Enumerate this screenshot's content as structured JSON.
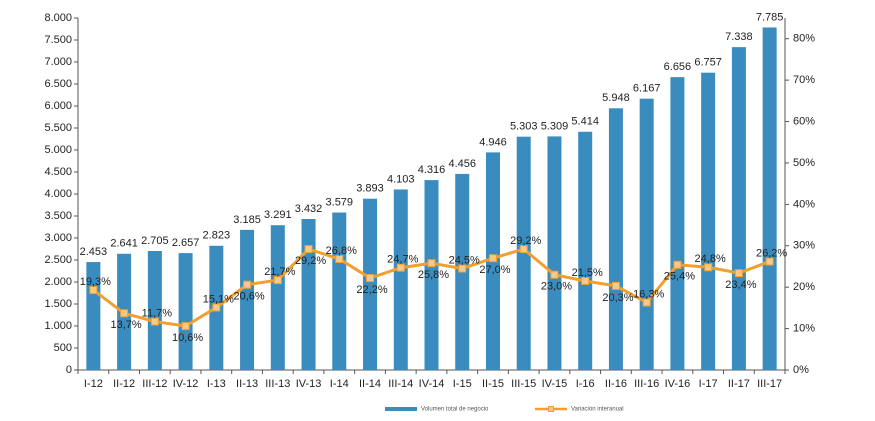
{
  "chart_data": {
    "type": "bar",
    "categories": [
      "I-12",
      "II-12",
      "III-12",
      "IV-12",
      "I-13",
      "II-13",
      "III-13",
      "IV-13",
      "I-14",
      "II-14",
      "III-14",
      "IV-14",
      "I-15",
      "II-15",
      "III-15",
      "IV-15",
      "I-16",
      "II-16",
      "III-16",
      "IV-16",
      "I-17",
      "II-17",
      "III-17"
    ],
    "series": [
      {
        "name": "Volumen total de negocio",
        "type": "bar",
        "color": "#3a8cbf",
        "values": [
          2453,
          2641,
          2705,
          2657,
          2823,
          3185,
          3291,
          3432,
          3579,
          3893,
          4103,
          4316,
          4456,
          4946,
          5303,
          5309,
          5414,
          5948,
          6167,
          6656,
          6757,
          7338,
          7785
        ],
        "value_labels": [
          "2.453",
          "2.641",
          "2.705",
          "2.657",
          "2.823",
          "3.185",
          "3.291",
          "3.432",
          "3.579",
          "3.893",
          "4.103",
          "4.316",
          "4.456",
          "4.946",
          "5.303",
          "5.309",
          "5.414",
          "5.948",
          "6.167",
          "6.656",
          "6.757",
          "7.338",
          "7.785"
        ]
      },
      {
        "name": "Variación interanual",
        "type": "line",
        "color": "#f0a030",
        "axis": "y2",
        "values": [
          19.3,
          13.7,
          11.7,
          10.6,
          15.1,
          20.6,
          21.7,
          29.2,
          26.8,
          22.2,
          24.7,
          25.8,
          24.5,
          27.0,
          29.2,
          23.0,
          21.5,
          20.3,
          16.3,
          25.4,
          24.8,
          23.4,
          26.2
        ],
        "value_labels": [
          "19,3%",
          "13,7%",
          "11,7%",
          "10,6%",
          "15,1%",
          "20,6%",
          "21,7%",
          "29,2%",
          "26,8%",
          "22,2%",
          "24,7%",
          "25,8%",
          "24,5%",
          "27,0%",
          "29,2%",
          "23,0%",
          "21,5%",
          "20,3%",
          "16,3%",
          "25,4%",
          "24,8%",
          "23,4%",
          "26,2%"
        ]
      }
    ],
    "ylim": [
      0,
      8000
    ],
    "yticks": [
      0,
      500,
      {
        "value": 1000,
        "label": "1.000"
      },
      {
        "value": 1500,
        "label": "1.500"
      },
      {
        "value": 2000,
        "label": "2.000"
      },
      {
        "value": 2500,
        "label": "2.500"
      },
      {
        "value": 3000,
        "label": "3.000"
      },
      {
        "value": 3500,
        "label": "3.500"
      },
      {
        "value": 4000,
        "label": "4.000"
      },
      {
        "value": 4500,
        "label": "4.500"
      },
      {
        "value": 5000,
        "label": "5.000"
      },
      {
        "value": 5500,
        "label": "5.500"
      },
      {
        "value": 6000,
        "label": "6.000"
      },
      {
        "value": 6500,
        "label": "6.500"
      },
      {
        "value": 7000,
        "label": "7.000"
      },
      {
        "value": 7500,
        "label": "7.500"
      },
      {
        "value": 8000,
        "label": "8.000"
      }
    ],
    "y2lim": [
      0,
      85
    ],
    "y2ticks": [
      {
        "value": 0,
        "label": "0%"
      },
      {
        "value": 10,
        "label": "10%"
      },
      {
        "value": 20,
        "label": "20%"
      },
      {
        "value": 30,
        "label": "30%"
      },
      {
        "value": 40,
        "label": "40%"
      },
      {
        "value": 50,
        "label": "50%"
      },
      {
        "value": 60,
        "label": "60%"
      },
      {
        "value": 70,
        "label": "70%"
      },
      {
        "value": 80,
        "label": "80%"
      }
    ],
    "grid": false
  }
}
